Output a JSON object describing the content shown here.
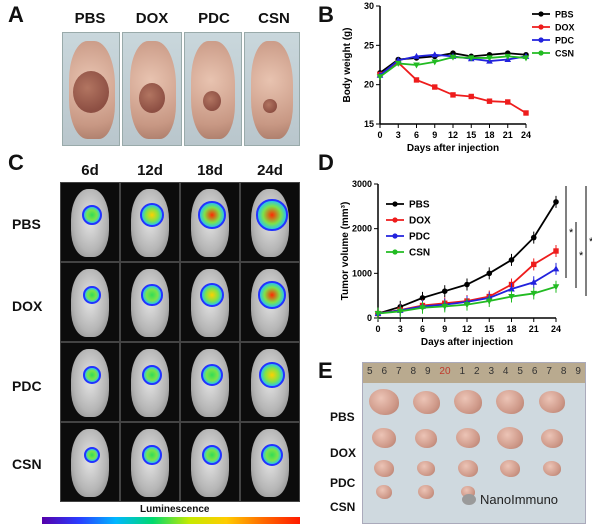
{
  "panels": {
    "A": "A",
    "B": "B",
    "C": "C",
    "D": "D",
    "E": "E"
  },
  "panelA": {
    "groups": [
      "PBS",
      "DOX",
      "PDC",
      "CSN"
    ]
  },
  "panelC": {
    "timepoints": [
      "6d",
      "12d",
      "18d",
      "24d"
    ],
    "groups": [
      "PBS",
      "DOX",
      "PDC",
      "CSN"
    ],
    "colorbar_label": "Luminescence"
  },
  "panelE": {
    "groups": [
      "PBS",
      "DOX",
      "PDC",
      "CSN"
    ],
    "ruler_marks": [
      "5",
      "6",
      "7",
      "8",
      "9",
      "20",
      "1",
      "2",
      "3",
      "4",
      "5",
      "6",
      "7",
      "8",
      "9"
    ]
  },
  "watermark": "NanoImmuno",
  "colors": {
    "PBS": "#000000",
    "DOX": "#ee1c1c",
    "PDC": "#2222dd",
    "CSN": "#22bb22"
  },
  "chart_data": [
    {
      "id": "B",
      "type": "line",
      "ylabel": "Body weight (g)",
      "xlabel": "Days after injection",
      "x": [
        0,
        3,
        6,
        9,
        12,
        15,
        18,
        21,
        24
      ],
      "ylim": [
        15,
        30
      ],
      "xlim": [
        0,
        24
      ],
      "yticks": [
        15,
        20,
        25,
        30
      ],
      "legend_position": "top-right",
      "series": [
        {
          "name": "PBS",
          "values": [
            21.5,
            23.2,
            23.4,
            23.6,
            24.0,
            23.6,
            23.8,
            24.0,
            23.8
          ]
        },
        {
          "name": "DOX",
          "values": [
            21.3,
            22.8,
            20.6,
            19.7,
            18.7,
            18.5,
            17.9,
            17.8,
            16.4
          ]
        },
        {
          "name": "PDC",
          "values": [
            21.2,
            23.1,
            23.6,
            23.8,
            23.6,
            23.3,
            23.0,
            23.2,
            23.6
          ]
        },
        {
          "name": "CSN",
          "values": [
            21.0,
            22.7,
            22.5,
            22.9,
            23.5,
            23.4,
            23.4,
            23.6,
            23.4
          ]
        }
      ]
    },
    {
      "id": "D",
      "type": "line",
      "ylabel": "Tumor volume (mm³)",
      "xlabel": "Days after injection",
      "x": [
        0,
        3,
        6,
        9,
        12,
        15,
        18,
        21,
        24
      ],
      "ylim": [
        0,
        3000
      ],
      "xlim": [
        0,
        24
      ],
      "yticks": [
        0,
        1000,
        2000,
        3000
      ],
      "legend_position": "top-left",
      "significance": [
        "*",
        "*",
        "*"
      ],
      "series": [
        {
          "name": "PBS",
          "values": [
            100,
            250,
            450,
            600,
            750,
            1000,
            1300,
            1800,
            2600
          ]
        },
        {
          "name": "DOX",
          "values": [
            100,
            180,
            280,
            330,
            380,
            480,
            750,
            1200,
            1500
          ]
        },
        {
          "name": "PDC",
          "values": [
            100,
            170,
            260,
            300,
            360,
            450,
            650,
            800,
            1100
          ]
        },
        {
          "name": "CSN",
          "values": [
            100,
            150,
            230,
            260,
            300,
            380,
            480,
            550,
            700
          ]
        }
      ]
    }
  ]
}
